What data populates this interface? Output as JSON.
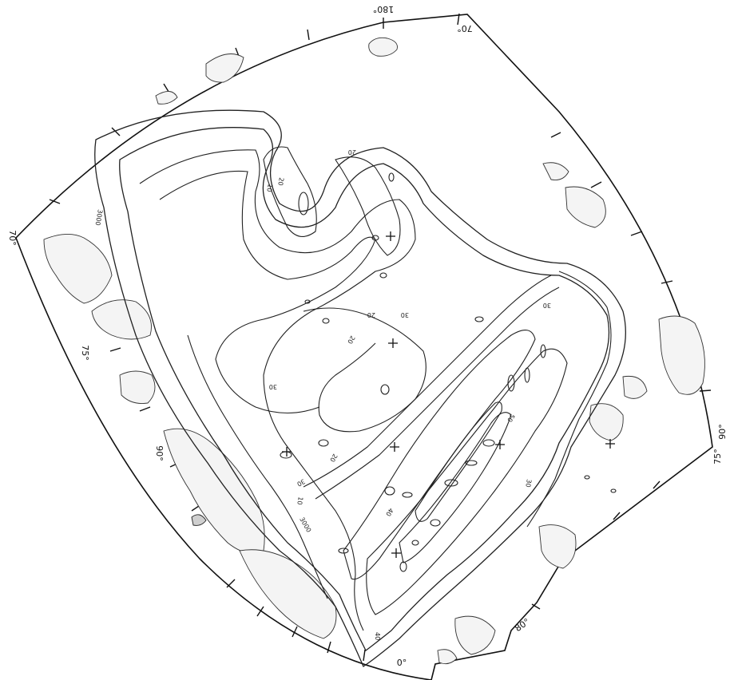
{
  "coordinate_labels": {
    "top": "180°",
    "top_right": "70°",
    "left": "70°",
    "left_mid": "75°",
    "left_low": "90°",
    "right": "75°",
    "right_edge": "90°",
    "bottom_right": "80°",
    "bottom": "0°"
  },
  "contour_labels": {
    "deep": "3000",
    "deep_left": "3000",
    "mid_a": "20",
    "mid_b": "30",
    "mid_c": "20",
    "mid_d": "30",
    "mid_e": "20",
    "mid_f": "30",
    "mid_g": "40",
    "mid_h": "50",
    "mid_i": "30",
    "mid_j": "40",
    "mid_k": "10",
    "mid_l": "20",
    "mid_m": "30",
    "mid_n": "20",
    "mid_o": "10"
  },
  "colors": {
    "ink": "#111111",
    "land_fill": "#f4f4f4",
    "land_shade": "#cfcfcf"
  }
}
